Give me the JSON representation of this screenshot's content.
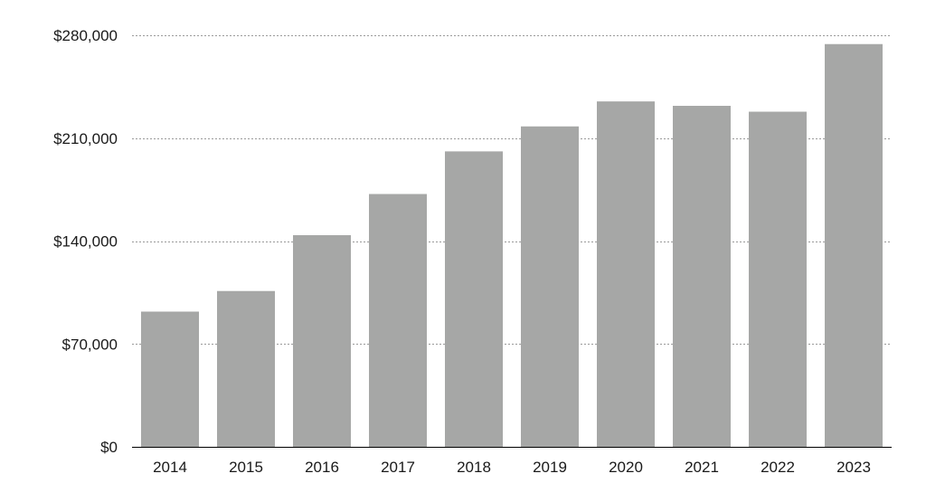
{
  "chart_data": {
    "type": "bar",
    "title": "",
    "xlabel": "",
    "ylabel": "",
    "categories": [
      "2014",
      "2015",
      "2016",
      "2017",
      "2018",
      "2019",
      "2020",
      "2021",
      "2022",
      "2023"
    ],
    "values": [
      92000,
      106000,
      144000,
      172000,
      201000,
      218000,
      235000,
      232000,
      228000,
      274000
    ],
    "ylim": [
      0,
      280000
    ],
    "yticks": [
      0,
      70000,
      140000,
      210000,
      280000
    ],
    "ytick_labels": [
      "$0",
      "$70,000",
      "$140,000",
      "$210,000",
      "$280,000"
    ],
    "grid": "horizontal dotted",
    "legend": "none",
    "colors": {
      "bar": "#a6a7a6",
      "grid": "#9a9a9a",
      "axis": "#000000",
      "text": "#1a1a1a"
    }
  }
}
